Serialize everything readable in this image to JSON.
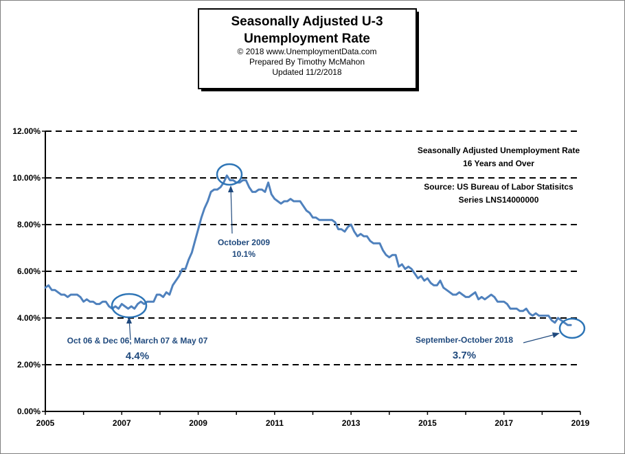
{
  "title_box": {
    "line1": "Seasonally Adjusted U-3",
    "line2": "Unemployment Rate",
    "line3": "© 2018  www.UnemploymentData.com",
    "line4": "Prepared  By Timothy  McMahon",
    "line5": "Updated  11/2/2018"
  },
  "info": {
    "line1": "Seasonally Adjusted Unemployment Rate",
    "line2": "16 Years and Over",
    "line3": "Source:  US  Bureau of Labor Statisitcs",
    "line4": "Series LNS14000000"
  },
  "annotations": {
    "peak_label": "October 2009",
    "peak_value": "10.1%",
    "low_label": "Oct 06  & Dec 06, March 07 & May 07",
    "low_value": "4.4%",
    "latest_label": "September-October 2018",
    "latest_value": "3.7%"
  },
  "colors": {
    "line": "#4f81bd",
    "annotation": "#1f497d",
    "circle": "#2e75b6",
    "grid": "#000000"
  },
  "chart_data": {
    "type": "line",
    "title": "Seasonally Adjusted U-3 Unemployment Rate",
    "xlabel": "",
    "ylabel": "",
    "xlim": [
      2005,
      2019
    ],
    "ylim": [
      0,
      12
    ],
    "x_ticks": [
      2005,
      2007,
      2009,
      2011,
      2013,
      2015,
      2017,
      2019
    ],
    "x_tick_labels": [
      "2005",
      "2007",
      "2009",
      "2011",
      "2013",
      "2015",
      "2017",
      "2019"
    ],
    "y_ticks": [
      0,
      2,
      4,
      6,
      8,
      10,
      12
    ],
    "y_tick_labels": [
      "0.00%",
      "2.00%",
      "4.00%",
      "6.00%",
      "8.00%",
      "10.00%",
      "12.00%"
    ],
    "grid": "horizontal dashed",
    "series": [
      {
        "name": "U-3 Unemployment Rate (%)",
        "start": "2005-01",
        "frequency": "monthly",
        "values": [
          5.3,
          5.4,
          5.2,
          5.2,
          5.1,
          5.0,
          5.0,
          4.9,
          5.0,
          5.0,
          5.0,
          4.9,
          4.7,
          4.8,
          4.7,
          4.7,
          4.6,
          4.6,
          4.7,
          4.7,
          4.5,
          4.4,
          4.5,
          4.4,
          4.6,
          4.5,
          4.4,
          4.5,
          4.4,
          4.6,
          4.7,
          4.6,
          4.7,
          4.7,
          4.7,
          5.0,
          5.0,
          4.9,
          5.1,
          5.0,
          5.4,
          5.6,
          5.8,
          6.1,
          6.1,
          6.5,
          6.8,
          7.3,
          7.8,
          8.3,
          8.7,
          9.0,
          9.4,
          9.5,
          9.5,
          9.6,
          9.8,
          10.1,
          9.9,
          9.9,
          9.8,
          9.8,
          9.9,
          9.9,
          9.6,
          9.4,
          9.4,
          9.5,
          9.5,
          9.4,
          9.8,
          9.3,
          9.1,
          9.0,
          8.9,
          9.0,
          9.0,
          9.1,
          9.0,
          9.0,
          9.0,
          8.8,
          8.6,
          8.5,
          8.3,
          8.3,
          8.2,
          8.2,
          8.2,
          8.2,
          8.2,
          8.1,
          7.8,
          7.8,
          7.7,
          7.9,
          8.0,
          7.7,
          7.5,
          7.6,
          7.5,
          7.5,
          7.3,
          7.2,
          7.2,
          7.2,
          6.9,
          6.7,
          6.6,
          6.7,
          6.7,
          6.2,
          6.3,
          6.1,
          6.2,
          6.1,
          5.9,
          5.7,
          5.8,
          5.6,
          5.7,
          5.5,
          5.4,
          5.4,
          5.6,
          5.3,
          5.2,
          5.1,
          5.0,
          5.0,
          5.1,
          5.0,
          4.9,
          4.9,
          5.0,
          5.1,
          4.8,
          4.9,
          4.8,
          4.9,
          5.0,
          4.9,
          4.7,
          4.7,
          4.7,
          4.6,
          4.4,
          4.4,
          4.4,
          4.3,
          4.3,
          4.4,
          4.2,
          4.1,
          4.2,
          4.1,
          4.1,
          4.1,
          4.1,
          3.9,
          3.8,
          4.0,
          3.9,
          3.8,
          3.7,
          3.7
        ]
      }
    ],
    "annotations": [
      {
        "label": "October 2009",
        "value": "10.1%",
        "x": 2009.75,
        "y": 10.1
      },
      {
        "label": "Oct 06  & Dec 06, March 07 & May 07",
        "value": "4.4%",
        "x": 2007.15,
        "y": 4.4
      },
      {
        "label": "September-October 2018",
        "value": "3.7%",
        "x": 2018.75,
        "y": 3.7
      }
    ]
  }
}
